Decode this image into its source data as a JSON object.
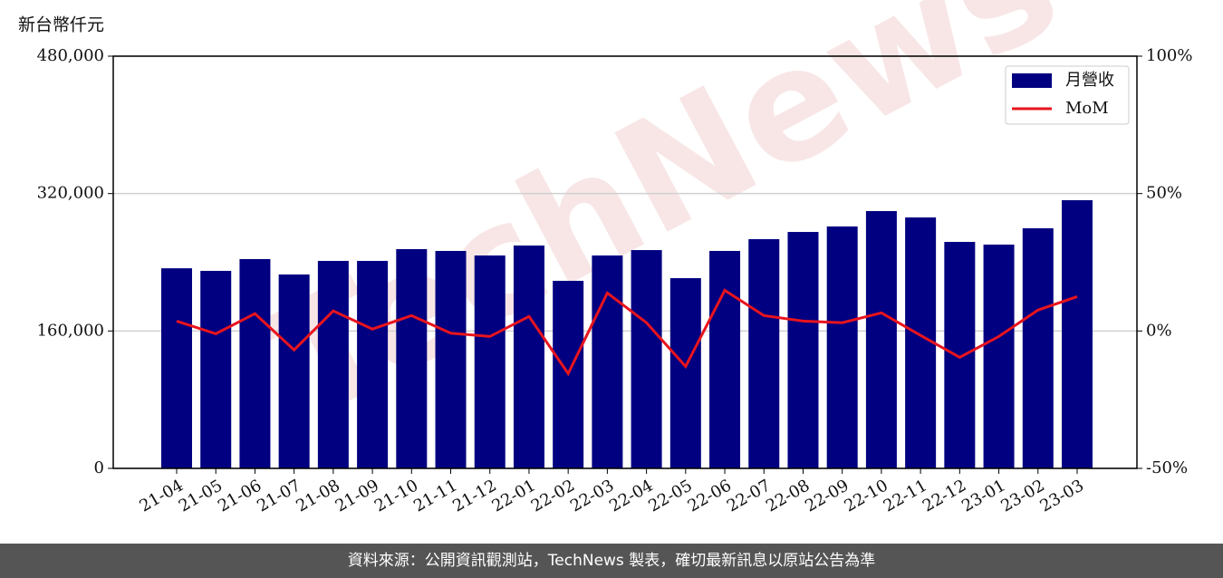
{
  "chart_data": {
    "type": "bar",
    "y_label": "新台幣仟元",
    "watermark": "TechNews",
    "categories": [
      "21-04",
      "21-05",
      "21-06",
      "21-07",
      "21-08",
      "21-09",
      "21-10",
      "21-11",
      "21-12",
      "22-01",
      "22-02",
      "22-03",
      "22-04",
      "22-05",
      "22-06",
      "22-07",
      "22-08",
      "22-09",
      "22-10",
      "22-11",
      "22-12",
      "23-01",
      "23-02",
      "23-03"
    ],
    "series": [
      {
        "name": "月營收",
        "type": "bar",
        "color": "#000080",
        "axis": "y",
        "values": [
          233000,
          230000,
          243700,
          225800,
          241600,
          241600,
          255300,
          253200,
          247900,
          259500,
          218400,
          247900,
          254200,
          221500,
          253200,
          266900,
          275300,
          281700,
          299600,
          292200,
          263700,
          260600,
          279600,
          312300
        ]
      },
      {
        "name": "MoM",
        "type": "line",
        "color": "#e8141e",
        "axis": "y2",
        "values": [
          3.6,
          -1.0,
          6.3,
          -6.9,
          7.3,
          0.7,
          5.6,
          -0.8,
          -2.0,
          5.3,
          -15.5,
          13.8,
          3.0,
          -12.9,
          14.8,
          5.6,
          3.6,
          3.0,
          6.6,
          -1.6,
          -9.6,
          -2.0,
          7.6,
          12.5
        ]
      }
    ],
    "ylim": [
      0,
      480000
    ],
    "yticks": [
      {
        "value": 0,
        "label": "0"
      },
      {
        "value": 160000,
        "label": "160,000"
      },
      {
        "value": 320000,
        "label": "320,000"
      },
      {
        "value": 480000,
        "label": "480,000"
      }
    ],
    "y2lim": [
      -50,
      100
    ],
    "y2ticks": [
      {
        "value": -50,
        "label": "-50%"
      },
      {
        "value": 0,
        "label": "0%"
      },
      {
        "value": 50,
        "label": "50%"
      },
      {
        "value": 100,
        "label": "100%"
      }
    ],
    "grid": true,
    "legend": "upper right"
  },
  "footer": "資料來源：公開資訊觀測站，TechNews 製表，確切最新訊息以原站公告為準"
}
